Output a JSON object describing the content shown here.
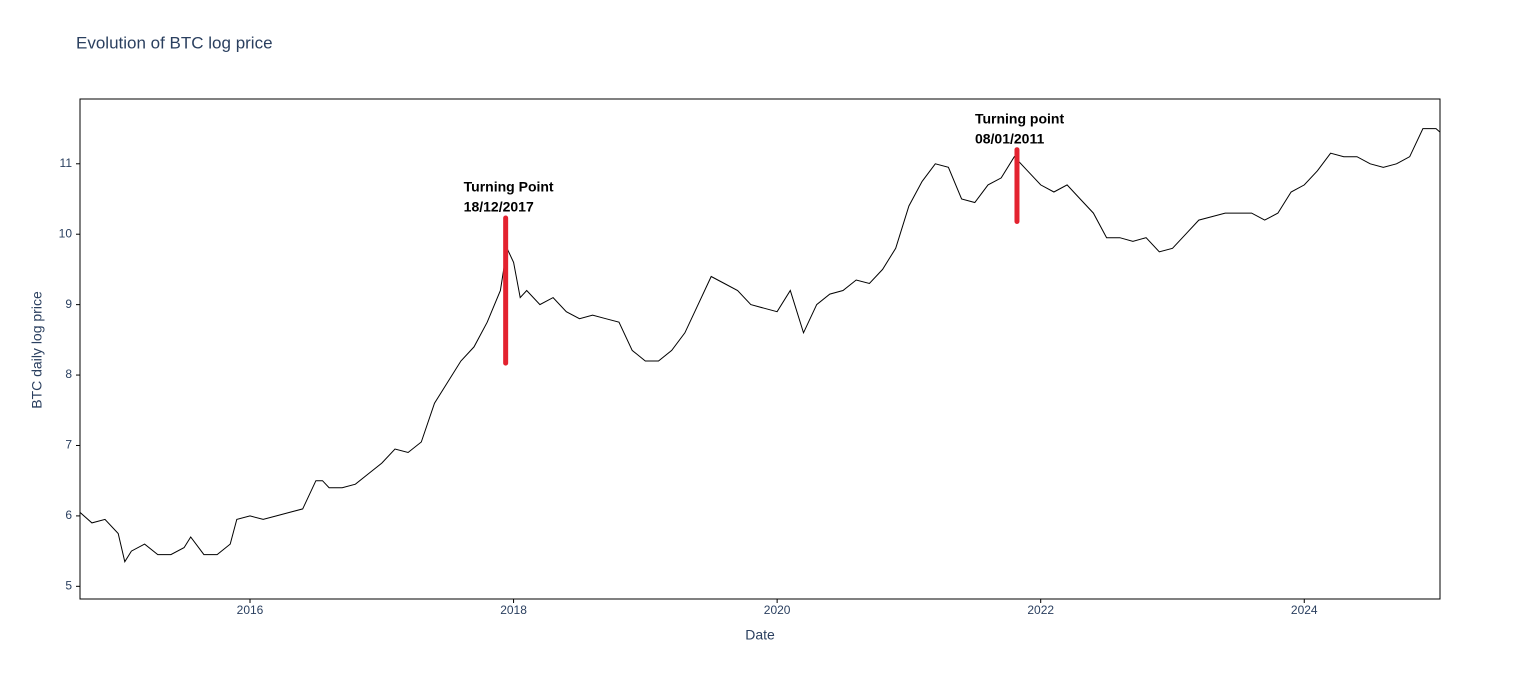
{
  "chart_data": {
    "type": "line",
    "title": "Evolution of BTC log price",
    "xlabel": "Date",
    "ylabel": "BTC daily log price",
    "x": [
      2014.71,
      2014.8,
      2014.9,
      2015.0,
      2015.05,
      2015.1,
      2015.2,
      2015.3,
      2015.4,
      2015.5,
      2015.55,
      2015.65,
      2015.75,
      2015.85,
      2015.9,
      2016.0,
      2016.1,
      2016.2,
      2016.3,
      2016.4,
      2016.5,
      2016.55,
      2016.6,
      2016.7,
      2016.8,
      2016.9,
      2017.0,
      2017.1,
      2017.2,
      2017.3,
      2017.4,
      2017.5,
      2017.6,
      2017.7,
      2017.8,
      2017.9,
      2017.95,
      2018.0,
      2018.05,
      2018.1,
      2018.2,
      2018.3,
      2018.4,
      2018.5,
      2018.6,
      2018.7,
      2018.8,
      2018.9,
      2019.0,
      2019.1,
      2019.2,
      2019.3,
      2019.4,
      2019.5,
      2019.6,
      2019.7,
      2019.8,
      2019.9,
      2020.0,
      2020.1,
      2020.2,
      2020.3,
      2020.4,
      2020.5,
      2020.6,
      2020.7,
      2020.8,
      2020.9,
      2021.0,
      2021.1,
      2021.2,
      2021.3,
      2021.4,
      2021.5,
      2021.6,
      2021.7,
      2021.8,
      2021.9,
      2022.0,
      2022.1,
      2022.2,
      2022.3,
      2022.4,
      2022.5,
      2022.6,
      2022.7,
      2022.8,
      2022.9,
      2023.0,
      2023.1,
      2023.2,
      2023.3,
      2023.4,
      2023.5,
      2023.6,
      2023.7,
      2023.8,
      2023.9,
      2024.0,
      2024.1,
      2024.2,
      2024.3,
      2024.4,
      2024.5,
      2024.6,
      2024.7,
      2024.8,
      2024.9,
      2025.0,
      2025.03
    ],
    "series": [
      {
        "name": "BTC",
        "color": "#000000",
        "values": [
          6.05,
          5.9,
          5.95,
          5.75,
          5.35,
          5.5,
          5.6,
          5.45,
          5.45,
          5.55,
          5.7,
          5.45,
          5.45,
          5.6,
          5.95,
          6.0,
          5.95,
          6.0,
          6.05,
          6.1,
          6.5,
          6.5,
          6.4,
          6.4,
          6.45,
          6.6,
          6.75,
          6.95,
          6.9,
          7.05,
          7.6,
          7.9,
          8.2,
          8.4,
          8.75,
          9.2,
          9.8,
          9.6,
          9.1,
          9.2,
          9.0,
          9.1,
          8.9,
          8.8,
          8.85,
          8.8,
          8.75,
          8.35,
          8.2,
          8.2,
          8.35,
          8.6,
          9.0,
          9.4,
          9.3,
          9.2,
          9.0,
          8.95,
          8.9,
          9.2,
          8.6,
          9.0,
          9.15,
          9.2,
          9.35,
          9.3,
          9.5,
          9.8,
          10.4,
          10.75,
          11.0,
          10.95,
          10.5,
          10.45,
          10.7,
          10.8,
          11.1,
          10.9,
          10.7,
          10.6,
          10.7,
          10.5,
          10.3,
          9.95,
          9.95,
          9.9,
          9.95,
          9.75,
          9.8,
          10.0,
          10.2,
          10.25,
          10.3,
          10.3,
          10.3,
          10.2,
          10.3,
          10.6,
          10.7,
          10.9,
          11.15,
          11.1,
          11.1,
          11.0,
          10.95,
          11.0,
          11.1,
          11.5,
          11.5,
          11.45
        ]
      }
    ],
    "xlim": [
      2014.71,
      2025.03
    ],
    "xticks": [
      2016,
      2018,
      2020,
      2022,
      2024
    ],
    "ylim": [
      4.82,
      11.92
    ],
    "yticks": [
      5,
      6,
      7,
      8,
      9,
      10,
      11
    ],
    "annotations": [
      {
        "lines": [
          "Turning Point",
          "18/12/2017"
        ],
        "x": 2017.94,
        "y0": 8.17,
        "y1": 10.23,
        "color": "#e3222f"
      },
      {
        "lines": [
          "Turning point",
          "08/01/2011"
        ],
        "x": 2021.82,
        "y0": 10.18,
        "y1": 11.2,
        "color": "#e3222f"
      }
    ]
  }
}
